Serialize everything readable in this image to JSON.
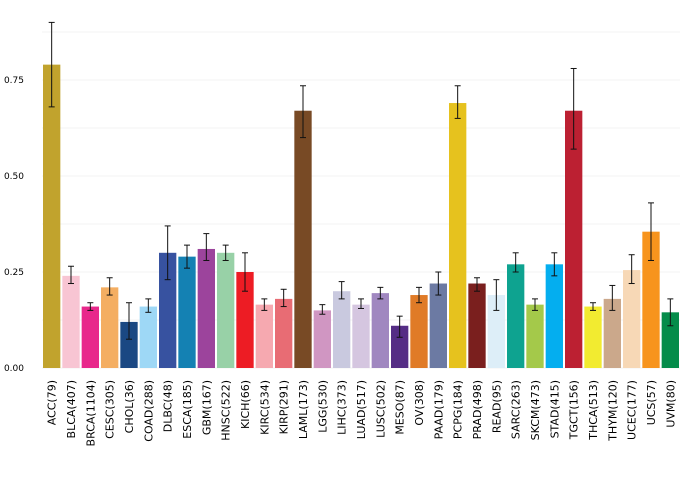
{
  "chart_data": {
    "type": "bar",
    "title": "",
    "xlabel": "",
    "ylabel": "",
    "ylim": [
      0,
      0.9
    ],
    "yticks": [
      0.0,
      0.25,
      0.5,
      0.75
    ],
    "ytick_labels": [
      "0.00",
      "0.25",
      "0.50",
      "0.75"
    ],
    "grid": true,
    "categories": [
      "ACC(79)",
      "BLCA(407)",
      "BRCA(1104)",
      "CESC(305)",
      "CHOL(36)",
      "COAD(288)",
      "DLBC(48)",
      "ESCA(185)",
      "GBM(167)",
      "HNSC(522)",
      "KICH(66)",
      "KIRC(534)",
      "KIRP(291)",
      "LAML(173)",
      "LGG(530)",
      "LIHC(373)",
      "LUAD(517)",
      "LUSC(502)",
      "MESO(87)",
      "OV(308)",
      "PAAD(179)",
      "PCPG(184)",
      "PRAD(498)",
      "READ(95)",
      "SARC(263)",
      "SKCM(473)",
      "STAD(415)",
      "TGCT(156)",
      "THCA(513)",
      "THYM(120)",
      "UCEC(177)",
      "UCS(57)",
      "UVM(80)"
    ],
    "values": [
      0.79,
      0.24,
      0.16,
      0.21,
      0.12,
      0.16,
      0.3,
      0.29,
      0.31,
      0.3,
      0.25,
      0.165,
      0.18,
      0.67,
      0.15,
      0.2,
      0.165,
      0.195,
      0.11,
      0.19,
      0.22,
      0.69,
      0.22,
      0.19,
      0.27,
      0.165,
      0.27,
      0.67,
      0.16,
      0.18,
      0.255,
      0.355,
      0.145
    ],
    "error_low": [
      0.68,
      0.22,
      0.15,
      0.19,
      0.075,
      0.145,
      0.23,
      0.26,
      0.28,
      0.28,
      0.2,
      0.15,
      0.16,
      0.6,
      0.14,
      0.18,
      0.155,
      0.18,
      0.08,
      0.17,
      0.19,
      0.65,
      0.2,
      0.15,
      0.25,
      0.15,
      0.24,
      0.57,
      0.15,
      0.15,
      0.22,
      0.28,
      0.11
    ],
    "error_high": [
      0.9,
      0.265,
      0.17,
      0.235,
      0.17,
      0.18,
      0.37,
      0.32,
      0.35,
      0.32,
      0.3,
      0.18,
      0.205,
      0.735,
      0.165,
      0.225,
      0.18,
      0.21,
      0.135,
      0.21,
      0.25,
      0.735,
      0.235,
      0.23,
      0.3,
      0.18,
      0.3,
      0.78,
      0.17,
      0.215,
      0.295,
      0.43,
      0.18
    ],
    "colors": [
      "#C1A32D",
      "#F8C5D3",
      "#E8288B",
      "#F4AE62",
      "#1A4883",
      "#9ED8F6",
      "#3752A0",
      "#1481B3",
      "#9C449C",
      "#98D1A7",
      "#ED1C24",
      "#F6A9B0",
      "#E86C74",
      "#784A25",
      "#D096C2",
      "#C9C9DF",
      "#D5C6E0",
      "#A087C0",
      "#552D85",
      "#E07B27",
      "#6C7AA3",
      "#E6C21E",
      "#7A1F1E",
      "#DDEEF8",
      "#0EA390",
      "#A4C94A",
      "#04AEEF",
      "#BC2032",
      "#F2EB30",
      "#CBA88B",
      "#F7D8B6",
      "#F7941D",
      "#048C4A"
    ]
  }
}
